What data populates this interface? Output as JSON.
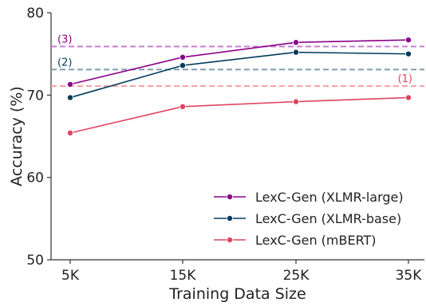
{
  "chart_data": {
    "type": "line",
    "xlabel": "Training Data Size",
    "ylabel": "Accuracy (%)",
    "categories": [
      "5K",
      "15K",
      "25K",
      "35K"
    ],
    "ylim": [
      50,
      80
    ],
    "yticks": [
      "50",
      "60",
      "70",
      "80"
    ],
    "grid": false,
    "legend": "lower-right",
    "series": [
      {
        "name": "LexC-Gen (XLMR-large)",
        "color": "#8b008b",
        "values": [
          71.3,
          74.6,
          76.4,
          76.7
        ]
      },
      {
        "name": "LexC-Gen (XLMR-base)",
        "color": "#003b5c",
        "values": [
          69.7,
          73.6,
          75.2,
          75.0
        ]
      },
      {
        "name": "LexC-Gen (mBERT)",
        "color": "#e0455f",
        "values": [
          65.4,
          68.6,
          69.2,
          69.7
        ]
      }
    ],
    "reference_lines": [
      {
        "label": "(3)",
        "value": 75.9,
        "color": "#c77fd0"
      },
      {
        "label": "(2)",
        "value": 73.1,
        "color": "#7f9db2"
      },
      {
        "label": "(1)",
        "value": 71.1,
        "color": "#f2a3a8",
        "label_color": "#e0455f"
      }
    ]
  }
}
